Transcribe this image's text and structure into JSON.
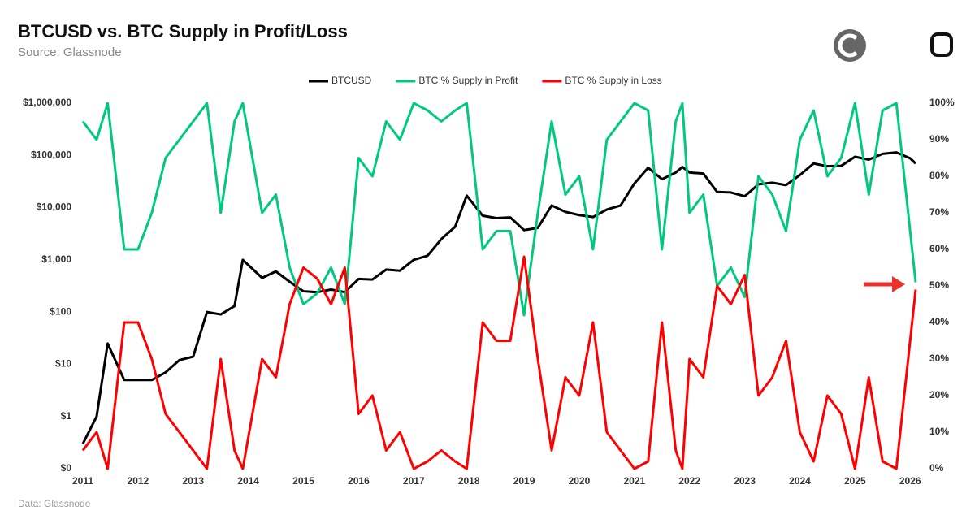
{
  "chart_data": {
    "type": "line",
    "title": "BTCUSD vs. BTC Supply in Profit/Loss",
    "subtitle": "Source: Glassnode",
    "footer": "Data: Glassnode",
    "log_y": true,
    "legend": "top",
    "x": [
      2011.0,
      2011.25,
      2011.45,
      2011.75,
      2012.0,
      2012.25,
      2012.5,
      2012.75,
      2013.0,
      2013.25,
      2013.5,
      2013.75,
      2013.9,
      2014.25,
      2014.5,
      2014.75,
      2015.0,
      2015.25,
      2015.5,
      2015.75,
      2016.0,
      2016.25,
      2016.5,
      2016.75,
      2017.0,
      2017.25,
      2017.5,
      2017.75,
      2017.96,
      2018.25,
      2018.5,
      2018.75,
      2019.0,
      2019.25,
      2019.5,
      2019.75,
      2020.0,
      2020.25,
      2020.5,
      2020.75,
      2021.0,
      2021.25,
      2021.5,
      2021.75,
      2021.87,
      2022.0,
      2022.25,
      2022.5,
      2022.75,
      2023.0,
      2023.25,
      2023.5,
      2023.75,
      2024.0,
      2024.25,
      2024.5,
      2024.75,
      2025.0,
      2025.25,
      2025.5,
      2025.75,
      2026.0,
      2026.1
    ],
    "xlim": [
      2011,
      2026.1
    ],
    "xticks": [
      2011,
      2012,
      2013,
      2014,
      2015,
      2016,
      2017,
      2018,
      2019,
      2020,
      2021,
      2022,
      2023,
      2024,
      2025,
      2026
    ],
    "ylim": [
      0.1,
      1000000
    ],
    "yticks": [
      {
        "value": 0.1,
        "label": "$0"
      },
      {
        "value": 1,
        "label": "$1"
      },
      {
        "value": 10,
        "label": "$10"
      },
      {
        "value": 100,
        "label": "$100"
      },
      {
        "value": 1000,
        "label": "$1,000"
      },
      {
        "value": 10000,
        "label": "$10,000"
      },
      {
        "value": 100000,
        "label": "$100,000"
      },
      {
        "value": 1000000,
        "label": "$1,000,000"
      }
    ],
    "y2lim": [
      0,
      100
    ],
    "y2ticks": [
      {
        "value": 0,
        "label": "0%"
      },
      {
        "value": 10,
        "label": "10%"
      },
      {
        "value": 20,
        "label": "20%"
      },
      {
        "value": 30,
        "label": "30%"
      },
      {
        "value": 40,
        "label": "40%"
      },
      {
        "value": 50,
        "label": "50%"
      },
      {
        "value": 60,
        "label": "60%"
      },
      {
        "value": 70,
        "label": "70%"
      },
      {
        "value": 80,
        "label": "80%"
      },
      {
        "value": 90,
        "label": "90%"
      },
      {
        "value": 100,
        "label": "100%"
      }
    ],
    "series": [
      {
        "name": "BTCUSD",
        "color": "#000000",
        "values": [
          0.3,
          1,
          25,
          5,
          5,
          5,
          7,
          12,
          14,
          100,
          90,
          130,
          1000,
          450,
          600,
          380,
          250,
          240,
          270,
          240,
          430,
          420,
          650,
          620,
          1000,
          1200,
          2500,
          4300,
          17000,
          7000,
          6300,
          6500,
          3700,
          4100,
          11000,
          8300,
          7200,
          6600,
          9200,
          11000,
          29000,
          58000,
          35000,
          47000,
          60000,
          47000,
          45000,
          20000,
          19500,
          16500,
          28000,
          30000,
          27000,
          42000,
          70000,
          62000,
          63000,
          94000,
          83000,
          107000,
          114000,
          88000,
          70000
        ]
      },
      {
        "name": "BTC % Supply in Profit",
        "color": "#00c97f",
        "axis": "y2",
        "values": [
          95,
          90,
          100,
          60,
          60,
          70,
          85,
          90,
          95,
          100,
          70,
          95,
          100,
          70,
          75,
          55,
          45,
          48,
          55,
          45,
          85,
          80,
          95,
          90,
          100,
          98,
          95,
          98,
          100,
          60,
          65,
          65,
          42,
          70,
          95,
          75,
          80,
          60,
          90,
          95,
          100,
          98,
          60,
          95,
          100,
          70,
          75,
          50,
          55,
          47,
          80,
          75,
          65,
          90,
          98,
          80,
          85,
          100,
          75,
          98,
          100,
          65,
          51
        ]
      },
      {
        "name": "BTC % Supply in Loss",
        "color": "#ff0000",
        "axis": "y2",
        "values": [
          5,
          10,
          0,
          40,
          40,
          30,
          15,
          10,
          5,
          0,
          30,
          5,
          0,
          30,
          25,
          45,
          55,
          52,
          45,
          55,
          15,
          20,
          5,
          10,
          0,
          2,
          5,
          2,
          0,
          40,
          35,
          35,
          58,
          30,
          5,
          25,
          20,
          40,
          10,
          5,
          0,
          2,
          40,
          5,
          0,
          30,
          25,
          50,
          45,
          53,
          20,
          25,
          35,
          10,
          2,
          20,
          15,
          0,
          25,
          2,
          0,
          35,
          49
        ]
      }
    ]
  }
}
